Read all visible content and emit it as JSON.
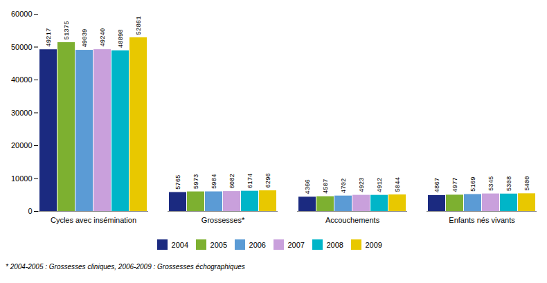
{
  "chart_data": {
    "type": "bar",
    "categories": [
      "Cycles avec insémination",
      "Grossesses*",
      "Accouchements",
      "Enfants nés vivants"
    ],
    "series": [
      {
        "name": "2004",
        "color": "#1B2A80",
        "values": [
          49217,
          5765,
          4366,
          4867
        ]
      },
      {
        "name": "2005",
        "color": "#7DB030",
        "values": [
          51375,
          5973,
          4507,
          4977
        ]
      },
      {
        "name": "2006",
        "color": "#5B9BD5",
        "values": [
          49039,
          5984,
          4702,
          5169
        ]
      },
      {
        "name": "2007",
        "color": "#C9A0DC",
        "values": [
          49240,
          6082,
          4923,
          5345
        ]
      },
      {
        "name": "2008",
        "color": "#00B5C8",
        "values": [
          48898,
          6174,
          4912,
          5308
        ]
      },
      {
        "name": "2009",
        "color": "#E8C800",
        "values": [
          52861,
          6296,
          5044,
          5400
        ]
      }
    ],
    "ylim": [
      0,
      60000
    ],
    "yticks": [
      0,
      10000,
      20000,
      30000,
      40000,
      50000,
      60000
    ],
    "grid": false,
    "legend": "bottom",
    "data_labels": true,
    "footnote": "* 2004-2005 : Grossesses cliniques, 2006-2009 : Grossesses échographiques"
  }
}
